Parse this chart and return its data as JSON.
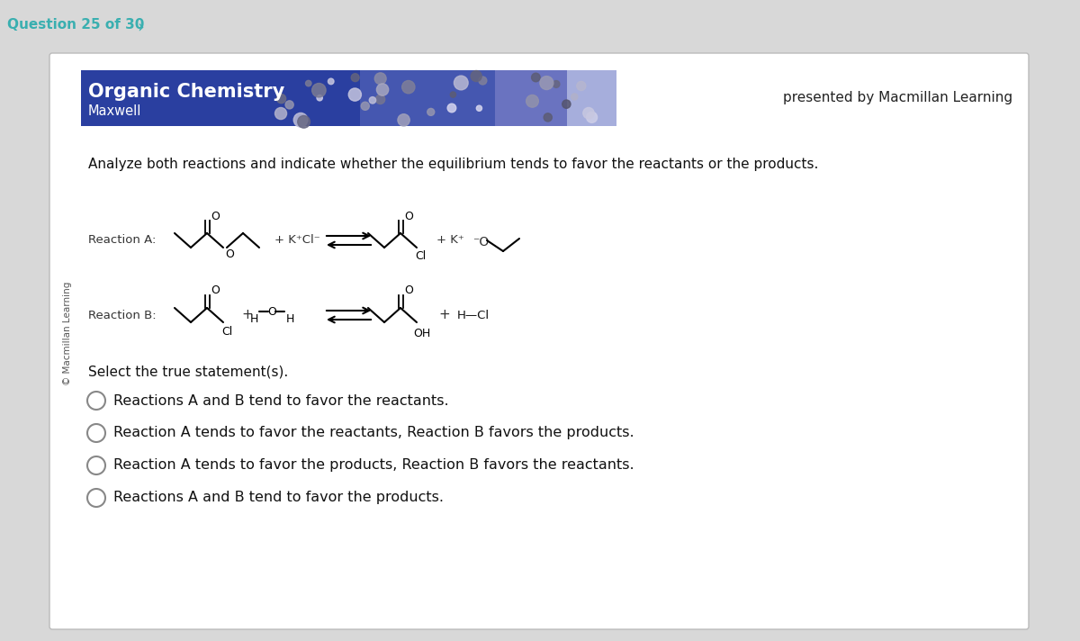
{
  "bg_color": "#d8d8d8",
  "panel_bg": "#ffffff",
  "header_bg": "#2a3fa0",
  "question_text": "Question 25 of 30",
  "question_color": "#3aafb0",
  "title_text": "Organic Chemistry",
  "subtitle_text": "Maxwell",
  "presented_text": "presented by Macmillan Learning",
  "copyright_text": "© Macmillan Learning",
  "instruction_text": "Analyze both reactions and indicate whether the equilibrium tends to favor the reactants or the products.",
  "select_text": "Select the true statement(s).",
  "options": [
    "Reactions A and B tend to favor the reactants.",
    "Reaction A tends to favor the reactants, Reaction B favors the products.",
    "Reaction A tends to favor the products, Reaction B favors the reactants.",
    "Reactions A and B tend to favor the products."
  ],
  "reaction_a_label": "Reaction A:",
  "reaction_b_label": "Reaction B:"
}
